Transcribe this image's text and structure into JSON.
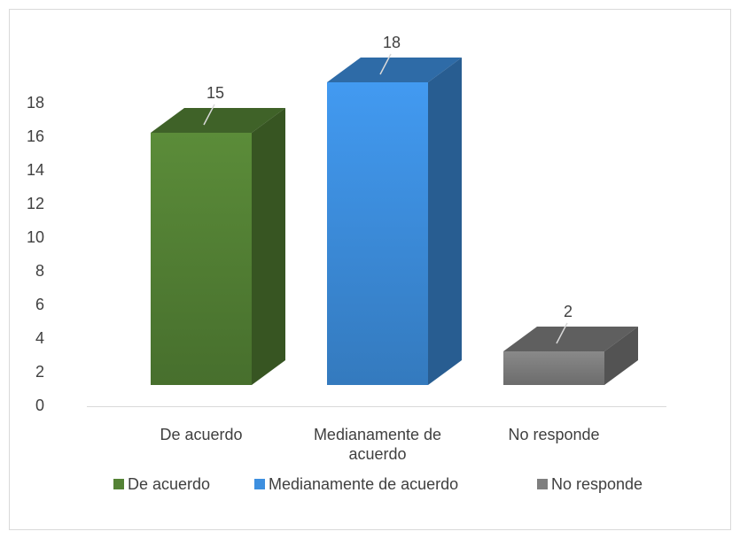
{
  "chart_data": {
    "type": "bar3d",
    "categories": [
      "De acuerdo",
      "Medianamente de acuerdo",
      "No responde"
    ],
    "values": [
      15,
      18,
      2
    ],
    "colors": [
      "#548235",
      "#3d8fdf",
      "#7f7f7f"
    ],
    "ylim": [
      0,
      18
    ],
    "yticks": [
      0,
      2,
      4,
      6,
      8,
      10,
      12,
      14,
      16,
      18
    ],
    "legend": "bottom"
  }
}
